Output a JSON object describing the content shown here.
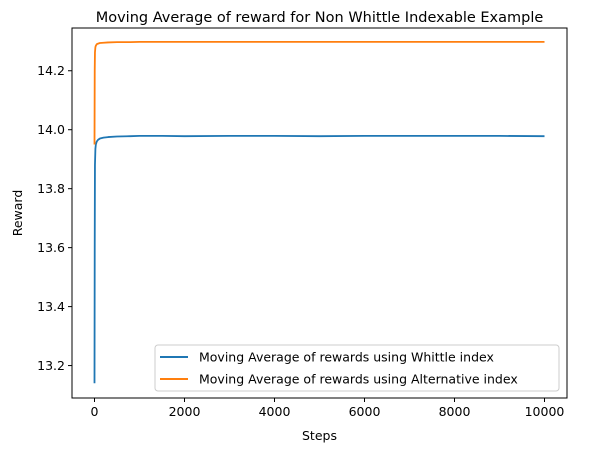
{
  "chart_data": {
    "type": "line",
    "title": "Moving Average of reward for Non Whittle Indexable Example",
    "xlabel": "Steps",
    "ylabel": "Reward",
    "xlim": [
      -500,
      10500
    ],
    "ylim": [
      13.09,
      14.345
    ],
    "xticks": [
      0,
      2000,
      4000,
      6000,
      8000,
      10000
    ],
    "xtick_labels": [
      "0",
      "2000",
      "4000",
      "6000",
      "8000",
      "10000"
    ],
    "yticks": [
      13.2,
      13.4,
      13.6,
      13.8,
      14.0,
      14.2
    ],
    "ytick_labels": [
      "13.2",
      "13.4",
      "13.6",
      "13.8",
      "14.0",
      "14.2"
    ],
    "grid": false,
    "legend_position": "lower-right",
    "series": [
      {
        "name": "Moving Average of rewards using Whittle index",
        "color": "#1f77b4",
        "x": [
          0,
          5,
          10,
          20,
          30,
          50,
          80,
          120,
          200,
          300,
          500,
          800,
          1000,
          1500,
          2000,
          3000,
          4000,
          5000,
          6000,
          7000,
          8000,
          9000,
          10000
        ],
        "y": [
          13.14,
          13.6,
          13.88,
          13.935,
          13.95,
          13.96,
          13.966,
          13.97,
          13.973,
          13.975,
          13.977,
          13.978,
          13.979,
          13.979,
          13.978,
          13.979,
          13.979,
          13.978,
          13.979,
          13.979,
          13.979,
          13.979,
          13.978
        ]
      },
      {
        "name": "Moving Average of rewards using Alternative index",
        "color": "#ff7f0e",
        "x": [
          0,
          5,
          10,
          20,
          30,
          50,
          80,
          120,
          200,
          300,
          500,
          800,
          1000,
          2000,
          3000,
          4000,
          5000,
          6000,
          7000,
          8000,
          9000,
          10000
        ],
        "y": [
          13.95,
          14.2,
          14.262,
          14.28,
          14.285,
          14.29,
          14.292,
          14.294,
          14.295,
          14.296,
          14.297,
          14.297,
          14.298,
          14.298,
          14.298,
          14.298,
          14.298,
          14.298,
          14.298,
          14.298,
          14.298,
          14.298
        ]
      }
    ]
  }
}
